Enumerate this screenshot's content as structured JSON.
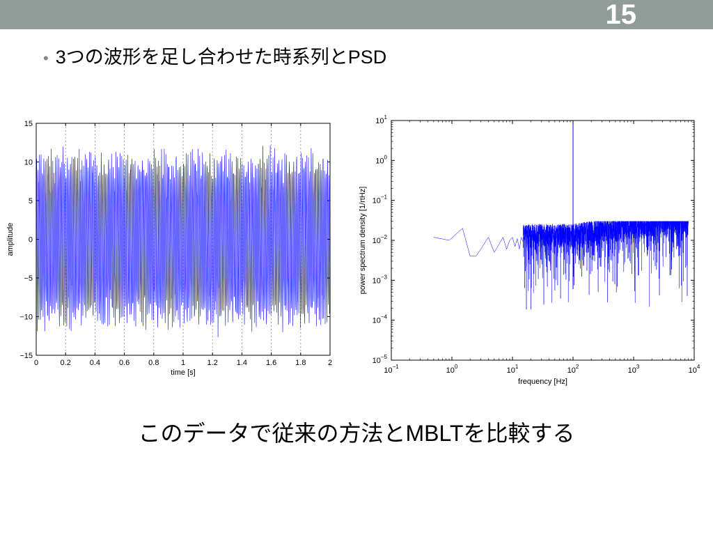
{
  "slide": {
    "page_number": "15",
    "bullet": "3つの波形を足し合わせた時系列とPSD",
    "conclusion": "このデータで従来の方法とMBLTを比較する"
  },
  "colors": {
    "header_bar": "#919c98",
    "series": "#0000ff"
  },
  "chart_data": [
    {
      "type": "line",
      "xlabel": "time [s]",
      "ylabel": "amplitude",
      "xlim": [
        0,
        2
      ],
      "ylim": [
        -15,
        15
      ],
      "x_ticks": [
        0,
        0.2,
        0.4,
        0.6,
        0.8,
        1,
        1.2,
        1.4,
        1.6,
        1.8,
        2
      ],
      "x_tick_labels": [
        "0",
        "0.2",
        "0.4",
        "0.6",
        "0.8",
        "1",
        "1.2",
        "1.4",
        "1.6",
        "1.8",
        "2"
      ],
      "y_ticks": [
        -15,
        -10,
        -5,
        0,
        5,
        10,
        15
      ],
      "y_tick_labels": [
        "−15",
        "−10",
        "−5",
        "0",
        "5",
        "10",
        "15"
      ],
      "grid": "x-dotted",
      "series_color": "#0000ff",
      "signal": {
        "description_free": true,
        "envelope": [
          -12,
          12
        ],
        "peak_range": [
          -13,
          13.5
        ]
      }
    },
    {
      "type": "line",
      "xscale": "log",
      "yscale": "log",
      "xlabel": "frequency [Hz]",
      "ylabel": "power spectrum density [1/rtHz]",
      "xlim": [
        0.1,
        10000
      ],
      "ylim": [
        1e-05,
        10
      ],
      "x_ticks": [
        0.1,
        1,
        10,
        100,
        1000,
        10000
      ],
      "x_tick_labels": [
        [
          "10",
          "−1"
        ],
        [
          "10",
          "0"
        ],
        [
          "10",
          "1"
        ],
        [
          "10",
          "2"
        ],
        [
          "10",
          "3"
        ],
        [
          "10",
          "4"
        ]
      ],
      "y_ticks": [
        1e-05,
        0.0001,
        0.001,
        0.01,
        0.1,
        1,
        10
      ],
      "y_tick_labels": [
        [
          "10",
          "−5"
        ],
        [
          "10",
          "−4"
        ],
        [
          "10",
          "−3"
        ],
        [
          "10",
          "−2"
        ],
        [
          "10",
          "−1"
        ],
        [
          "10",
          "0"
        ],
        [
          "10",
          "1"
        ]
      ],
      "series_color": "#0000ff",
      "peak": {
        "x": 100,
        "y": 10
      },
      "low_freq_points": [
        [
          0.5,
          0.012
        ],
        [
          0.9,
          0.01
        ],
        [
          1.5,
          0.02
        ],
        [
          2.0,
          0.004
        ],
        [
          2.5,
          0.004
        ],
        [
          3.0,
          0.006
        ],
        [
          4.0,
          0.012
        ],
        [
          5.0,
          0.005
        ],
        [
          6.0,
          0.008
        ],
        [
          7.0,
          0.012
        ],
        [
          8.0,
          0.006
        ],
        [
          9.0,
          0.01
        ],
        [
          10.0,
          0.012
        ],
        [
          11,
          0.007
        ],
        [
          12,
          0.011
        ],
        [
          13,
          0.006
        ],
        [
          14,
          0.012
        ],
        [
          15,
          0.009
        ]
      ],
      "noise_floor": 0.012
    }
  ]
}
